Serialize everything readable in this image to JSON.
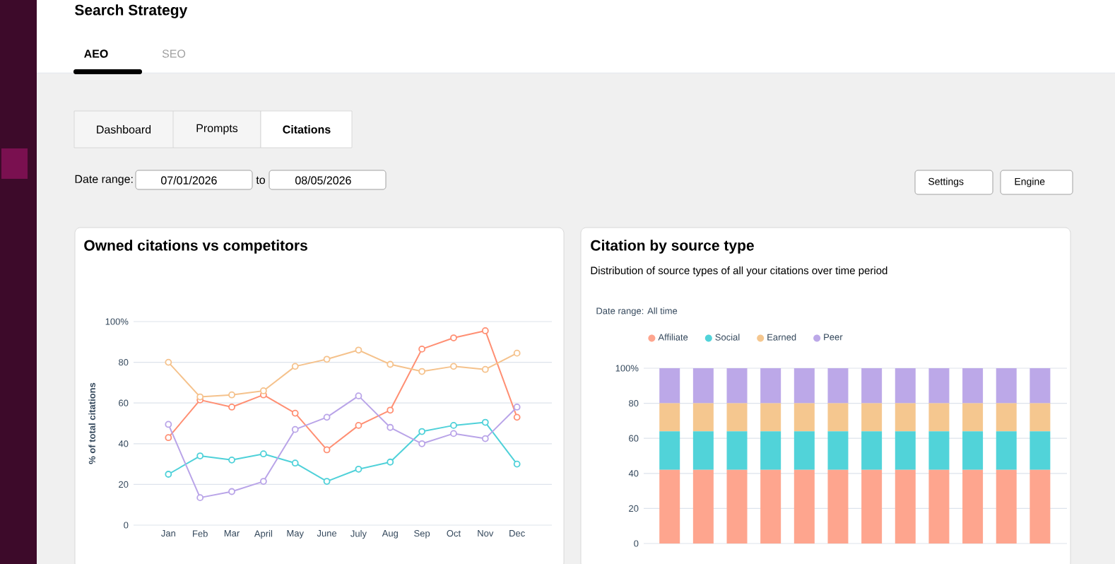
{
  "chart_data": [
    {
      "type": "other",
      "title": "Search Strategy",
      "annotations": [
        "AEO",
        "SEO",
        "Dashboard",
        "Prompts",
        "Citations",
        "Date range:",
        "07/01/2026",
        "to",
        "08/05/2026",
        "Settings",
        "Engine"
      ]
    },
    {
      "type": "line",
      "title": "Owned citations vs competitors",
      "ylabel": "% of total citations",
      "categories": [
        "Jan",
        "Feb",
        "Mar",
        "April",
        "May",
        "June",
        "July",
        "Aug",
        "Sep",
        "Oct",
        "Nov",
        "Dec"
      ],
      "series": [
        {
          "color": "#ff8f73",
          "values": [
            43,
            61.5,
            58,
            64,
            55,
            37,
            49,
            56.5,
            86.5,
            92,
            95.5,
            53
          ]
        },
        {
          "color": "#4fd1d9",
          "values": [
            25,
            34,
            32,
            35,
            30.5,
            21.5,
            27.5,
            31,
            46,
            49,
            50.5,
            30
          ]
        },
        {
          "color": "#f5c28c",
          "values": [
            80,
            63,
            64,
            66,
            78,
            81.5,
            86,
            79,
            75.5,
            78,
            76.5,
            84.5
          ]
        },
        {
          "color": "#b9a4e8",
          "values": [
            49.5,
            13.5,
            16.5,
            21.5,
            47,
            53,
            63.5,
            48,
            40,
            45,
            42.5,
            58
          ]
        }
      ],
      "ylim": [
        0,
        100
      ],
      "yticks": [
        0,
        20,
        40,
        60,
        80,
        {
          "value": 100,
          "label": "100%"
        }
      ],
      "grid": "y",
      "marker": "circle",
      "line_style": "solid"
    },
    {
      "type": "bar",
      "title": "Citation by source type",
      "subtitle": "Distribution of source types of all your citations over time period",
      "annotations": [
        "Date range: All time"
      ],
      "categories": [
        null,
        null,
        null,
        null,
        null,
        null,
        null,
        null,
        null,
        null,
        null,
        null
      ],
      "stacked": true,
      "series": [
        {
          "name": "Affiliate",
          "color": "#fea58e",
          "values": [
            42,
            42,
            42,
            42,
            42,
            42,
            42,
            42,
            42,
            42,
            42,
            42
          ]
        },
        {
          "name": "Social",
          "color": "#51d3d9",
          "values": [
            22,
            22,
            22,
            22,
            22,
            22,
            22,
            22,
            22,
            22,
            22,
            22
          ]
        },
        {
          "name": "Earned",
          "color": "#f5c78f",
          "values": [
            16,
            16,
            16,
            16,
            16,
            16,
            16,
            16,
            16,
            16,
            16,
            16
          ]
        },
        {
          "name": "Peer",
          "color": "#bca8e8",
          "values": [
            20,
            20,
            20,
            20,
            20,
            20,
            20,
            20,
            20,
            20,
            20,
            20
          ]
        }
      ],
      "ylim": [
        0,
        100
      ],
      "yticks": [
        0,
        20,
        40,
        60,
        80,
        {
          "value": 100,
          "label": "100%"
        }
      ],
      "grid": "y",
      "legend": "top left"
    }
  ]
}
